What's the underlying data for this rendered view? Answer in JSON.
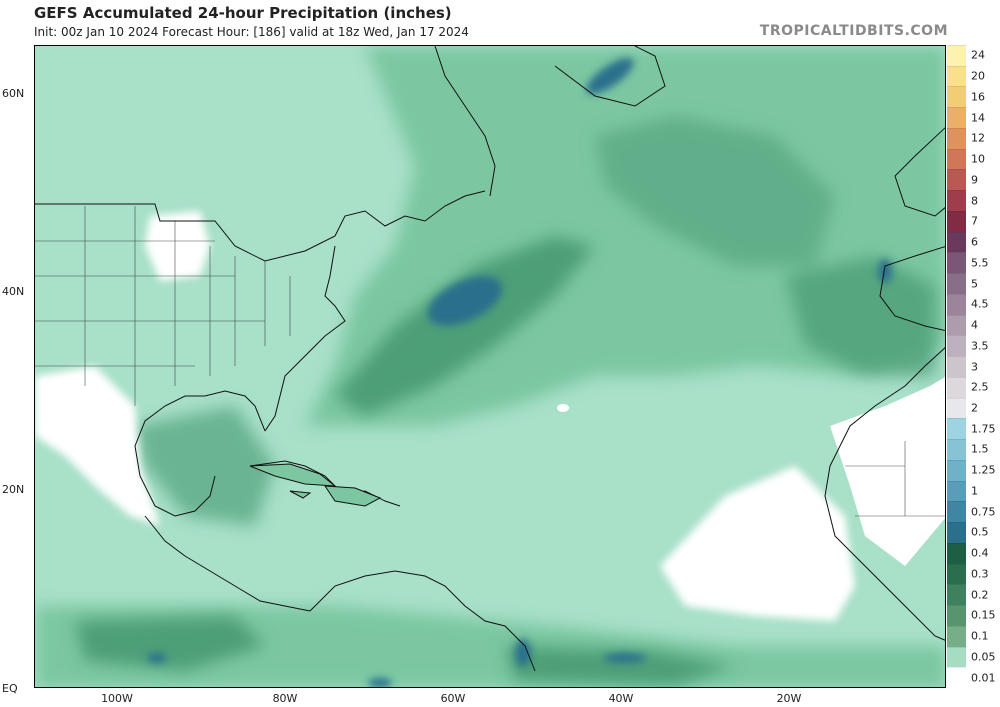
{
  "header": {
    "title": "GEFS Accumulated 24-hour Precipitation (inches)",
    "subtitle": "Init: 00z Jan 10 2024   Forecast Hour: [186]   valid at 18z Wed, Jan 17 2024",
    "brand": "TROPICALTIDBITS.COM"
  },
  "axes": {
    "lat_labels": [
      "60N",
      "40N",
      "20N",
      "EQ"
    ],
    "lon_labels": [
      "100W",
      "80W",
      "60W",
      "40W",
      "20W"
    ]
  },
  "legend": {
    "levels": [
      "24",
      "20",
      "16",
      "14",
      "12",
      "10",
      "9",
      "8",
      "7",
      "6",
      "5.5",
      "5",
      "4.5",
      "4",
      "3.5",
      "3",
      "2.5",
      "2",
      "1.75",
      "1.5",
      "1.25",
      "1",
      "0.75",
      "0.5",
      "0.4",
      "0.3",
      "0.2",
      "0.15",
      "0.1",
      "0.05",
      "0.01"
    ],
    "colors": [
      "#fdf2b0",
      "#f9e08a",
      "#f2cd74",
      "#eab067",
      "#df935c",
      "#cf7756",
      "#b95a52",
      "#9e3e4c",
      "#812c45",
      "#6a3a5e",
      "#7a5677",
      "#8a6d88",
      "#9c859b",
      "#ad9cac",
      "#bdb1bd",
      "#ccc5cc",
      "#dcd8dc",
      "#e8e8ec",
      "#9ed3e1",
      "#86c3d4",
      "#6fb1c7",
      "#5a9db9",
      "#3f85a4",
      "#2c6f8c",
      "#1d5e44",
      "#2a6e4f",
      "#3f805e",
      "#58956f",
      "#77ad87",
      "#a5dcc2",
      "#ffffff"
    ]
  },
  "palette": {
    "ocean_light": "#a8e0c8",
    "ocean_mid": "#7cc7a2",
    "ocean_dark": "#4e9f78",
    "band_darker": "#2e7a58",
    "blue_max": "#2c6f8c",
    "land_dry": "#ffffff",
    "coast": "#111111"
  }
}
